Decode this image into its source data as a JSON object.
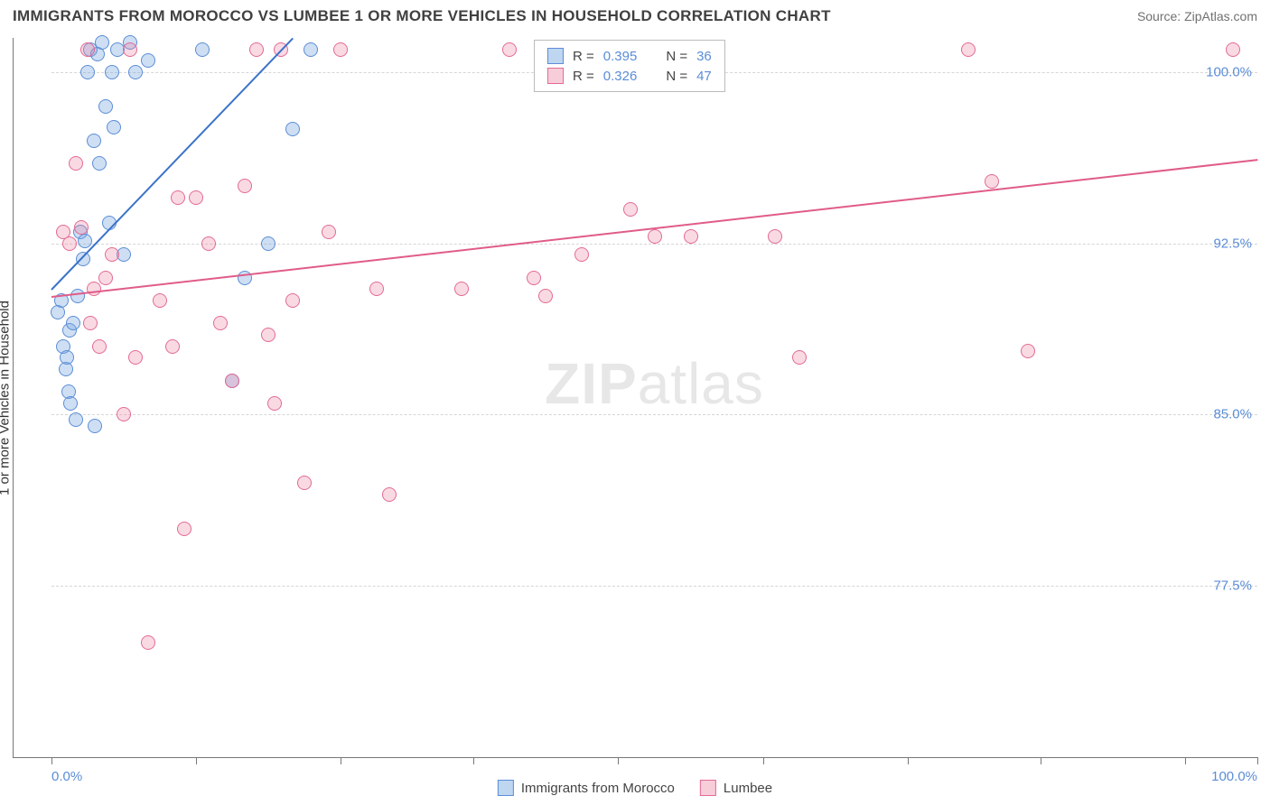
{
  "title": "IMMIGRANTS FROM MOROCCO VS LUMBEE 1 OR MORE VEHICLES IN HOUSEHOLD CORRELATION CHART",
  "source": "Source: ZipAtlas.com",
  "ylabel": "1 or more Vehicles in Household",
  "watermark_a": "ZIP",
  "watermark_b": "atlas",
  "chart": {
    "type": "scatter",
    "xlim": [
      0,
      100
    ],
    "ylim": [
      70,
      101.5
    ],
    "yticks": [
      {
        "v": 100.0,
        "label": "100.0%"
      },
      {
        "v": 92.5,
        "label": "92.5%"
      },
      {
        "v": 85.0,
        "label": "85.0%"
      },
      {
        "v": 77.5,
        "label": "77.5%"
      }
    ],
    "xticks_pct": [
      0,
      12,
      24,
      35,
      47,
      59,
      71,
      82,
      94,
      100
    ],
    "xaxis_min_label": "0.0%",
    "xaxis_max_label": "100.0%",
    "grid_color": "#d6d6d6",
    "colors": {
      "blue_fill": "rgba(114,163,224,0.35)",
      "blue_stroke": "#5b8dd6",
      "blue_line": "#3b73c9",
      "pink_fill": "rgba(236,131,163,0.30)",
      "pink_stroke": "#e36a94",
      "pink_line": "#e05c88",
      "tick_text": "#5b8dd6"
    },
    "series": [
      {
        "name": "Immigrants from Morocco",
        "color": "blue",
        "r": 0.395,
        "n": 36,
        "trend": {
          "x1": 0,
          "y1": 90.5,
          "x2": 20,
          "y2": 101.5
        },
        "points": [
          [
            0.5,
            89.5
          ],
          [
            0.8,
            90.0
          ],
          [
            1.0,
            88.0
          ],
          [
            1.2,
            87.0
          ],
          [
            1.3,
            87.5
          ],
          [
            1.4,
            86.0
          ],
          [
            1.5,
            88.7
          ],
          [
            1.6,
            85.5
          ],
          [
            1.8,
            89.0
          ],
          [
            2.0,
            84.8
          ],
          [
            2.2,
            90.2
          ],
          [
            2.4,
            93.0
          ],
          [
            2.6,
            91.8
          ],
          [
            2.8,
            92.6
          ],
          [
            3.0,
            100.0
          ],
          [
            3.2,
            101.0
          ],
          [
            3.5,
            97.0
          ],
          [
            3.8,
            100.8
          ],
          [
            4.0,
            96.0
          ],
          [
            4.2,
            101.3
          ],
          [
            4.5,
            98.5
          ],
          [
            5.0,
            100.0
          ],
          [
            5.2,
            97.6
          ],
          [
            5.5,
            101.0
          ],
          [
            6.0,
            92.0
          ],
          [
            6.5,
            101.3
          ],
          [
            7.0,
            100.0
          ],
          [
            3.6,
            84.5
          ],
          [
            8.0,
            100.5
          ],
          [
            15.0,
            86.5
          ],
          [
            16.0,
            91.0
          ],
          [
            18.0,
            92.5
          ],
          [
            20.0,
            97.5
          ],
          [
            21.5,
            101.0
          ],
          [
            12.5,
            101.0
          ],
          [
            4.8,
            93.4
          ]
        ]
      },
      {
        "name": "Lumbee",
        "color": "pink",
        "r": 0.326,
        "n": 47,
        "trend": {
          "x1": 0,
          "y1": 90.2,
          "x2": 100,
          "y2": 96.2
        },
        "points": [
          [
            1.0,
            93.0
          ],
          [
            1.5,
            92.5
          ],
          [
            2.0,
            96.0
          ],
          [
            2.5,
            93.2
          ],
          [
            3.0,
            101.0
          ],
          [
            3.5,
            90.5
          ],
          [
            4.0,
            88.0
          ],
          [
            4.5,
            91.0
          ],
          [
            5.0,
            92.0
          ],
          [
            6.0,
            85.0
          ],
          [
            7.0,
            87.5
          ],
          [
            8.0,
            75.0
          ],
          [
            9.0,
            90.0
          ],
          [
            10.0,
            88.0
          ],
          [
            11.0,
            80.0
          ],
          [
            12.0,
            94.5
          ],
          [
            13.0,
            92.5
          ],
          [
            14.0,
            89.0
          ],
          [
            15.0,
            86.5
          ],
          [
            16.0,
            95.0
          ],
          [
            17.0,
            101.0
          ],
          [
            18.0,
            88.5
          ],
          [
            19.0,
            101.0
          ],
          [
            20.0,
            90.0
          ],
          [
            21.0,
            82.0
          ],
          [
            23.0,
            93.0
          ],
          [
            27.0,
            90.5
          ],
          [
            28.0,
            81.5
          ],
          [
            38.0,
            101.0
          ],
          [
            40.0,
            91.0
          ],
          [
            41.0,
            90.2
          ],
          [
            48.0,
            94.0
          ],
          [
            50.0,
            92.8
          ],
          [
            53.0,
            92.8
          ],
          [
            60.0,
            92.8
          ],
          [
            62.0,
            87.5
          ],
          [
            76.0,
            101.0
          ],
          [
            78.0,
            95.2
          ],
          [
            81.0,
            87.8
          ],
          [
            98.0,
            101.0
          ],
          [
            6.5,
            101.0
          ],
          [
            18.5,
            85.5
          ],
          [
            10.5,
            94.5
          ],
          [
            24.0,
            101.0
          ],
          [
            34.0,
            90.5
          ],
          [
            44.0,
            92.0
          ],
          [
            3.2,
            89.0
          ]
        ]
      }
    ],
    "legend_box": {
      "r_label": "R =",
      "n_label": "N ="
    },
    "bottom_legend": [
      {
        "color": "blue",
        "label": "Immigrants from Morocco"
      },
      {
        "color": "pink",
        "label": "Lumbee"
      }
    ]
  }
}
